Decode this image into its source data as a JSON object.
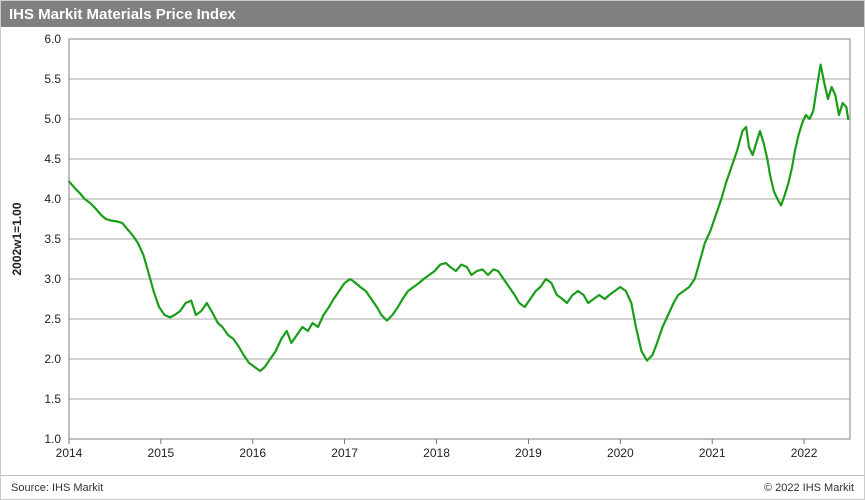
{
  "title": "IHS Markit Materials Price Index",
  "footer_left": "Source: IHS Markit",
  "footer_right": "© 2022 IHS Markit",
  "chart": {
    "type": "line",
    "ylabel": "2002w1=1.00",
    "xlim": [
      2014,
      2022.5
    ],
    "ylim": [
      1.0,
      6.0
    ],
    "ytick_step": 0.5,
    "xticks": [
      2014,
      2015,
      2016,
      2017,
      2018,
      2019,
      2020,
      2021,
      2022
    ],
    "xtick_labels": [
      "2014",
      "2015",
      "2016",
      "2017",
      "2018",
      "2019",
      "2020",
      "2021",
      "2022"
    ],
    "line_color": "#1a9e1a",
    "line_width": 2.2,
    "background_color": "#ffffff",
    "grid_color": "#555555",
    "title_bg": "#808080",
    "title_color": "#ffffff",
    "title_fontsize": 15,
    "axis_fontsize": 12,
    "series": [
      [
        2014.0,
        4.22
      ],
      [
        2014.06,
        4.14
      ],
      [
        2014.12,
        4.07
      ],
      [
        2014.17,
        4.0
      ],
      [
        2014.23,
        3.95
      ],
      [
        2014.29,
        3.88
      ],
      [
        2014.35,
        3.8
      ],
      [
        2014.4,
        3.75
      ],
      [
        2014.46,
        3.73
      ],
      [
        2014.52,
        3.72
      ],
      [
        2014.58,
        3.7
      ],
      [
        2014.63,
        3.63
      ],
      [
        2014.69,
        3.55
      ],
      [
        2014.75,
        3.45
      ],
      [
        2014.81,
        3.3
      ],
      [
        2014.86,
        3.1
      ],
      [
        2014.92,
        2.85
      ],
      [
        2014.98,
        2.65
      ],
      [
        2015.04,
        2.55
      ],
      [
        2015.1,
        2.52
      ],
      [
        2015.15,
        2.55
      ],
      [
        2015.21,
        2.6
      ],
      [
        2015.27,
        2.7
      ],
      [
        2015.33,
        2.73
      ],
      [
        2015.38,
        2.55
      ],
      [
        2015.44,
        2.6
      ],
      [
        2015.5,
        2.7
      ],
      [
        2015.56,
        2.58
      ],
      [
        2015.62,
        2.45
      ],
      [
        2015.67,
        2.4
      ],
      [
        2015.73,
        2.3
      ],
      [
        2015.79,
        2.25
      ],
      [
        2015.85,
        2.15
      ],
      [
        2015.9,
        2.05
      ],
      [
        2015.96,
        1.95
      ],
      [
        2016.02,
        1.9
      ],
      [
        2016.08,
        1.85
      ],
      [
        2016.13,
        1.9
      ],
      [
        2016.19,
        2.0
      ],
      [
        2016.25,
        2.1
      ],
      [
        2016.31,
        2.25
      ],
      [
        2016.37,
        2.35
      ],
      [
        2016.42,
        2.2
      ],
      [
        2016.48,
        2.3
      ],
      [
        2016.54,
        2.4
      ],
      [
        2016.6,
        2.35
      ],
      [
        2016.65,
        2.45
      ],
      [
        2016.71,
        2.4
      ],
      [
        2016.77,
        2.55
      ],
      [
        2016.83,
        2.65
      ],
      [
        2016.88,
        2.75
      ],
      [
        2016.94,
        2.85
      ],
      [
        2017.0,
        2.95
      ],
      [
        2017.06,
        3.0
      ],
      [
        2017.12,
        2.95
      ],
      [
        2017.17,
        2.9
      ],
      [
        2017.23,
        2.85
      ],
      [
        2017.29,
        2.75
      ],
      [
        2017.35,
        2.65
      ],
      [
        2017.4,
        2.55
      ],
      [
        2017.46,
        2.48
      ],
      [
        2017.52,
        2.55
      ],
      [
        2017.58,
        2.65
      ],
      [
        2017.63,
        2.75
      ],
      [
        2017.69,
        2.85
      ],
      [
        2017.75,
        2.9
      ],
      [
        2017.81,
        2.95
      ],
      [
        2017.86,
        3.0
      ],
      [
        2017.92,
        3.05
      ],
      [
        2017.98,
        3.1
      ],
      [
        2018.04,
        3.18
      ],
      [
        2018.1,
        3.2
      ],
      [
        2018.15,
        3.15
      ],
      [
        2018.21,
        3.1
      ],
      [
        2018.27,
        3.18
      ],
      [
        2018.33,
        3.15
      ],
      [
        2018.38,
        3.05
      ],
      [
        2018.44,
        3.1
      ],
      [
        2018.5,
        3.12
      ],
      [
        2018.56,
        3.05
      ],
      [
        2018.62,
        3.12
      ],
      [
        2018.67,
        3.1
      ],
      [
        2018.73,
        3.0
      ],
      [
        2018.79,
        2.9
      ],
      [
        2018.85,
        2.8
      ],
      [
        2018.9,
        2.7
      ],
      [
        2018.96,
        2.65
      ],
      [
        2019.02,
        2.75
      ],
      [
        2019.08,
        2.85
      ],
      [
        2019.13,
        2.9
      ],
      [
        2019.19,
        3.0
      ],
      [
        2019.25,
        2.95
      ],
      [
        2019.31,
        2.8
      ],
      [
        2019.37,
        2.75
      ],
      [
        2019.42,
        2.7
      ],
      [
        2019.48,
        2.8
      ],
      [
        2019.54,
        2.85
      ],
      [
        2019.6,
        2.8
      ],
      [
        2019.65,
        2.7
      ],
      [
        2019.71,
        2.75
      ],
      [
        2019.77,
        2.8
      ],
      [
        2019.83,
        2.75
      ],
      [
        2019.88,
        2.8
      ],
      [
        2019.94,
        2.85
      ],
      [
        2020.0,
        2.9
      ],
      [
        2020.06,
        2.85
      ],
      [
        2020.12,
        2.7
      ],
      [
        2020.17,
        2.4
      ],
      [
        2020.23,
        2.1
      ],
      [
        2020.29,
        1.98
      ],
      [
        2020.35,
        2.05
      ],
      [
        2020.4,
        2.2
      ],
      [
        2020.46,
        2.4
      ],
      [
        2020.52,
        2.55
      ],
      [
        2020.58,
        2.7
      ],
      [
        2020.63,
        2.8
      ],
      [
        2020.69,
        2.85
      ],
      [
        2020.75,
        2.9
      ],
      [
        2020.81,
        3.0
      ],
      [
        2020.86,
        3.2
      ],
      [
        2020.92,
        3.45
      ],
      [
        2020.98,
        3.6
      ],
      [
        2021.04,
        3.8
      ],
      [
        2021.1,
        4.0
      ],
      [
        2021.15,
        4.2
      ],
      [
        2021.21,
        4.4
      ],
      [
        2021.27,
        4.6
      ],
      [
        2021.33,
        4.85
      ],
      [
        2021.37,
        4.9
      ],
      [
        2021.4,
        4.65
      ],
      [
        2021.44,
        4.55
      ],
      [
        2021.48,
        4.7
      ],
      [
        2021.52,
        4.85
      ],
      [
        2021.56,
        4.7
      ],
      [
        2021.6,
        4.5
      ],
      [
        2021.63,
        4.3
      ],
      [
        2021.67,
        4.1
      ],
      [
        2021.71,
        4.0
      ],
      [
        2021.75,
        3.92
      ],
      [
        2021.79,
        4.05
      ],
      [
        2021.83,
        4.2
      ],
      [
        2021.87,
        4.4
      ],
      [
        2021.9,
        4.6
      ],
      [
        2021.94,
        4.8
      ],
      [
        2021.98,
        4.95
      ],
      [
        2022.02,
        5.05
      ],
      [
        2022.06,
        5.0
      ],
      [
        2022.1,
        5.1
      ],
      [
        2022.14,
        5.4
      ],
      [
        2022.18,
        5.68
      ],
      [
        2022.22,
        5.45
      ],
      [
        2022.26,
        5.25
      ],
      [
        2022.3,
        5.4
      ],
      [
        2022.34,
        5.3
      ],
      [
        2022.38,
        5.05
      ],
      [
        2022.42,
        5.2
      ],
      [
        2022.46,
        5.15
      ],
      [
        2022.48,
        5.0
      ]
    ]
  }
}
